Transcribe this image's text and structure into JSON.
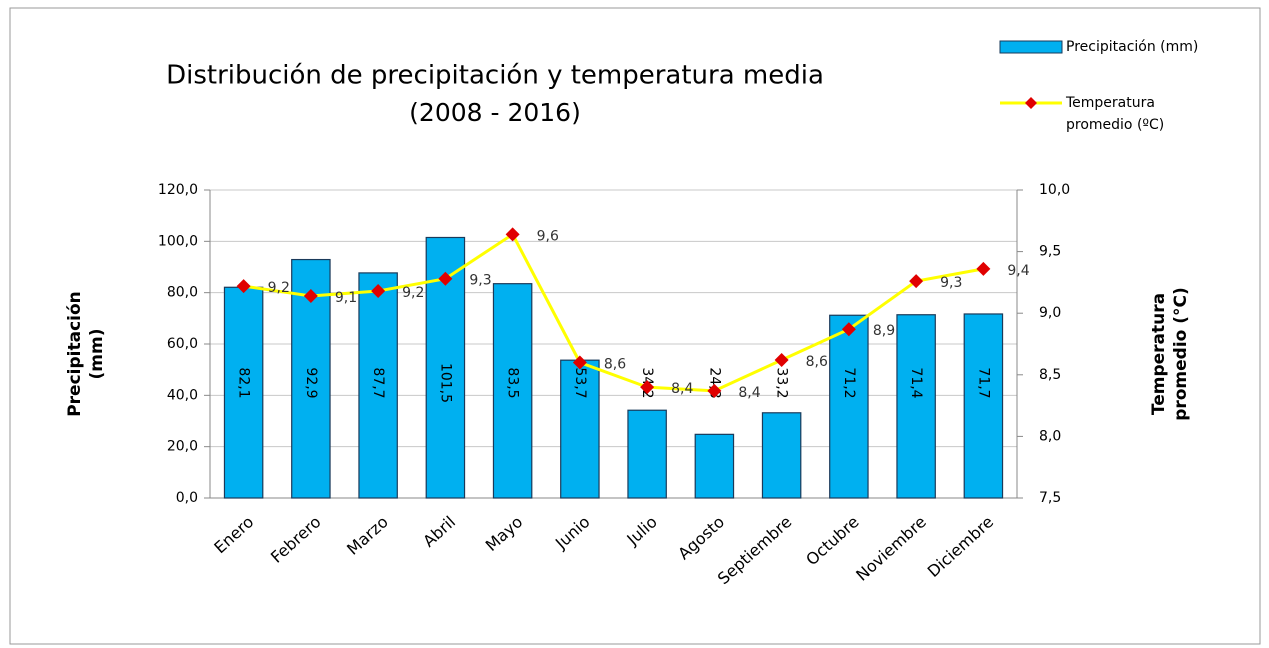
{
  "chart_data": {
    "type": "bar",
    "title": "Distribución de precipitación y temperatura media",
    "subtitle": "(2008 - 2016)",
    "y_label": "Precipitación (mm)",
    "y2_label": "Temperatura promedio (°C)",
    "categories": [
      "Enero",
      "Febrero",
      "Marzo",
      "Abril",
      "Mayo",
      "Junio",
      "Julio",
      "Agosto",
      "Septiembre",
      "Octubre",
      "Noviembre",
      "Diciembre"
    ],
    "series": [
      {
        "name": "Precipitación (mm)",
        "type": "bar",
        "color": "#00b0f0",
        "values": [
          82.1,
          92.9,
          87.7,
          101.5,
          83.5,
          53.7,
          34.2,
          24.8,
          33.2,
          71.2,
          71.4,
          71.7
        ],
        "value_labels": [
          "82,1",
          "92,9",
          "87,7",
          "101,5",
          "83,5",
          "53,7",
          "34,2",
          "24,8",
          "33,2",
          "71,2",
          "71,4",
          "71,7"
        ]
      },
      {
        "name": "Temperatura promedio (ºC)",
        "type": "line",
        "axis": "y2",
        "color": "#ffff00",
        "marker_color": "#e00000",
        "values": [
          9.22,
          9.14,
          9.18,
          9.28,
          9.64,
          8.6,
          8.4,
          8.37,
          8.62,
          8.87,
          9.26,
          9.36
        ],
        "value_labels": [
          "9,2",
          "9,1",
          "9,2",
          "9,3",
          "9,6",
          "8,6",
          "8,4",
          "8,4",
          "8,6",
          "8,9",
          "9,3",
          "9,4"
        ]
      }
    ],
    "ylim": [
      0,
      120
    ],
    "yticks": [
      {
        "value": 0,
        "label": "0,0"
      },
      {
        "value": 20,
        "label": "20,0"
      },
      {
        "value": 40,
        "label": "40,0"
      },
      {
        "value": 60,
        "label": "60,0"
      },
      {
        "value": 80,
        "label": "80,0"
      },
      {
        "value": 100,
        "label": "100,0"
      },
      {
        "value": 120,
        "label": "120,0"
      }
    ],
    "y2lim": [
      7.5,
      10
    ],
    "y2ticks": [
      {
        "value": 7.5,
        "label": "7,5"
      },
      {
        "value": 8,
        "label": "8,0"
      },
      {
        "value": 8.5,
        "label": "8,5"
      },
      {
        "value": 9,
        "label": "9,0"
      },
      {
        "value": 9.5,
        "label": "9,5"
      },
      {
        "value": 10,
        "label": "10,0"
      }
    ],
    "grid": true,
    "legend": "top-right"
  }
}
